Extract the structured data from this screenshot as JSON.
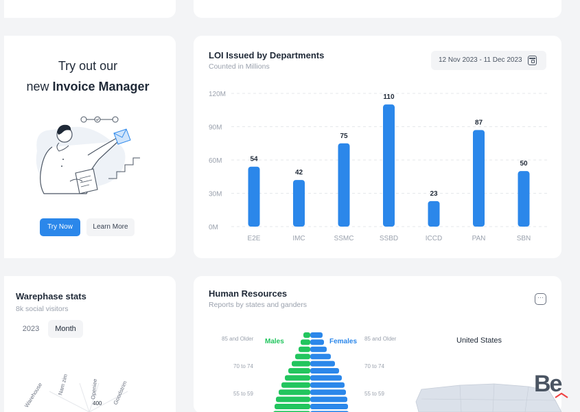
{
  "promo": {
    "line1": "Try out our",
    "line2_prefix": "new ",
    "line2_bold": "Invoice Manager",
    "try_now_label": "Try Now",
    "learn_more_label": "Learn More"
  },
  "loi": {
    "title": "LOI Issued by Departments",
    "subtitle": "Counted in Millions",
    "date_range": "12 Nov 2023 - 11 Dec 2023",
    "calendar_icon": "calendar-icon"
  },
  "chart_data": {
    "type": "bar",
    "categories": [
      "E2E",
      "IMC",
      "SSMC",
      "SSBD",
      "ICCD",
      "PAN",
      "SBN"
    ],
    "values": [
      54,
      42,
      75,
      110,
      23,
      87,
      50
    ],
    "data_labels": [
      "54",
      "42",
      "75",
      "110",
      "23",
      "87",
      "50"
    ],
    "y_ticks": [
      0,
      30,
      60,
      90,
      120
    ],
    "y_tick_labels": [
      "0M",
      "30M",
      "60M",
      "90M",
      "120M"
    ],
    "ylim": [
      0,
      120
    ],
    "grid": true,
    "bar_color": "#2b87ea"
  },
  "warephase": {
    "title": "Warephase stats",
    "subtitle": "8k social visitors",
    "tab_year": "2023",
    "tab_month": "Month",
    "radial_labels": [
      "Warehouse",
      "Nam zim",
      "Openiee",
      "Goodstrim"
    ],
    "radial_value": "400"
  },
  "hr": {
    "title": "Human Resources",
    "subtitle": "Reports by states and ganders",
    "more_icon": "more-icon",
    "legend_males": "Males",
    "legend_females": "Females",
    "age_labels": [
      "85 and Older",
      "70 to 74",
      "55 to 59"
    ],
    "map_title": "United States"
  },
  "pyramid": {
    "male_color": "#22c55e",
    "female_color": "#2b87ea",
    "males": [
      10,
      14,
      17,
      22,
      27,
      32,
      37,
      42,
      46,
      50,
      52,
      54
    ],
    "females": [
      18,
      20,
      24,
      30,
      36,
      42,
      46,
      50,
      52,
      54,
      55,
      56
    ]
  },
  "watermark": {
    "text": "Be"
  }
}
